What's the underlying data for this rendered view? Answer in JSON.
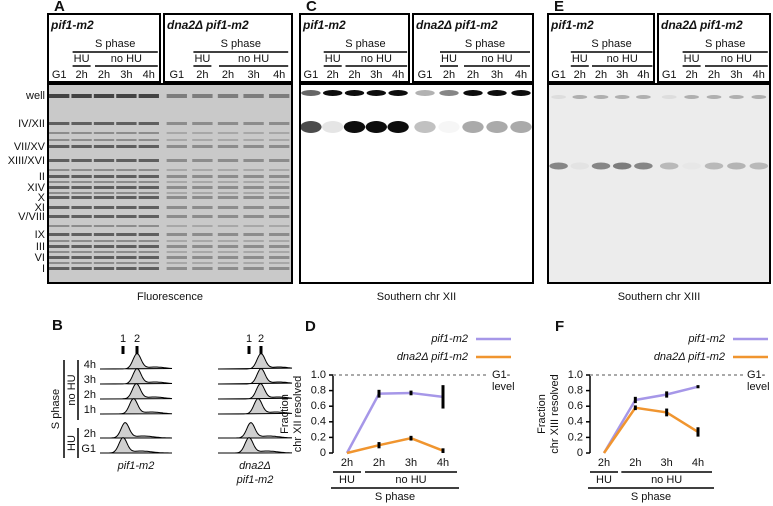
{
  "gel_panels": [
    {
      "letter": "A",
      "strains": [
        "pif1-m2",
        "dna2Δ pif1-m2"
      ],
      "phase": "S phase",
      "treatments": [
        "HU",
        "no HU"
      ],
      "lanes": [
        "G1",
        "2h",
        "2h",
        "3h",
        "4h"
      ],
      "caption": "Fluorescence",
      "bands": [
        "well",
        "IV/XII",
        "VII/XV",
        "XIII/XVI",
        "II",
        "XIV",
        "X",
        "XI",
        "V/VIII",
        "IX",
        "III",
        "VI",
        "I"
      ]
    },
    {
      "letter": "C",
      "strains": [
        "pif1-m2",
        "dna2Δ pif1-m2"
      ],
      "phase": "S phase",
      "treatments": [
        "HU",
        "no HU"
      ],
      "lanes": [
        "G1",
        "2h",
        "2h",
        "3h",
        "4h"
      ],
      "caption": "Southern chr XII"
    },
    {
      "letter": "E",
      "strains": [
        "pif1-m2",
        "dna2Δ pif1-m2"
      ],
      "phase": "S phase",
      "treatments": [
        "HU",
        "no HU"
      ],
      "lanes": [
        "G1",
        "2h",
        "2h",
        "3h",
        "4h"
      ],
      "caption": "Southern chr XIII"
    }
  ],
  "flow_panel": {
    "letter": "B",
    "peaks": [
      "1",
      "2"
    ],
    "rows": [
      "4h",
      "3h",
      "2h",
      "1h",
      "2h",
      "G1"
    ],
    "phase": "S phase",
    "treatments": [
      "no HU",
      "HU"
    ],
    "strain_labels": [
      [
        "pif1-m2"
      ],
      [
        "dna2Δ",
        "pif1-m2"
      ]
    ]
  },
  "chart_data": [
    {
      "type": "line",
      "letter": "D",
      "ylabel": [
        "Fraction",
        "chr XII resolved"
      ],
      "categories": [
        "2h",
        "2h",
        "3h",
        "4h"
      ],
      "groups": [
        "HU",
        "no HU",
        "no HU",
        "no HU"
      ],
      "xlabel": "S phase",
      "ylim": [
        0,
        1
      ],
      "yticks": [
        0,
        0.2,
        0.4,
        0.6,
        0.8,
        {
          "value": 1,
          "label": "1.0"
        }
      ],
      "reference": {
        "value": 1,
        "label": [
          "G1-",
          "level"
        ]
      },
      "series": [
        {
          "name": "pif1-m2",
          "color": "#a697e8",
          "values": [
            0,
            0.76,
            0.77,
            0.72
          ],
          "errors": [
            null,
            0.05,
            0.03,
            0.15
          ]
        },
        {
          "name": "dna2Δ pif1-m2",
          "color": "#f0952f",
          "values": [
            0,
            0.1,
            0.19,
            0.03
          ],
          "errors": [
            null,
            0.04,
            0.03,
            0.03
          ]
        }
      ]
    },
    {
      "type": "line",
      "letter": "F",
      "ylabel": [
        "Fraction",
        "chr XIII resolved"
      ],
      "categories": [
        "2h",
        "2h",
        "3h",
        "4h"
      ],
      "groups": [
        "HU",
        "no HU",
        "no HU",
        "no HU"
      ],
      "xlabel": "S phase",
      "ylim": [
        0,
        1
      ],
      "yticks": [
        0,
        0.2,
        0.4,
        0.6,
        0.8,
        {
          "value": 1,
          "label": "1.0"
        }
      ],
      "reference": {
        "value": 1,
        "label": [
          "G1-",
          "level"
        ]
      },
      "series": [
        {
          "name": "pif1-m2",
          "color": "#a697e8",
          "values": [
            0,
            0.68,
            0.75,
            0.85
          ],
          "errors": [
            null,
            0.04,
            0.04,
            0.02
          ]
        },
        {
          "name": "dna2Δ pif1-m2",
          "color": "#f0952f",
          "values": [
            0,
            0.58,
            0.52,
            0.27
          ],
          "errors": [
            null,
            0.03,
            0.05,
            0.06
          ]
        }
      ]
    }
  ]
}
